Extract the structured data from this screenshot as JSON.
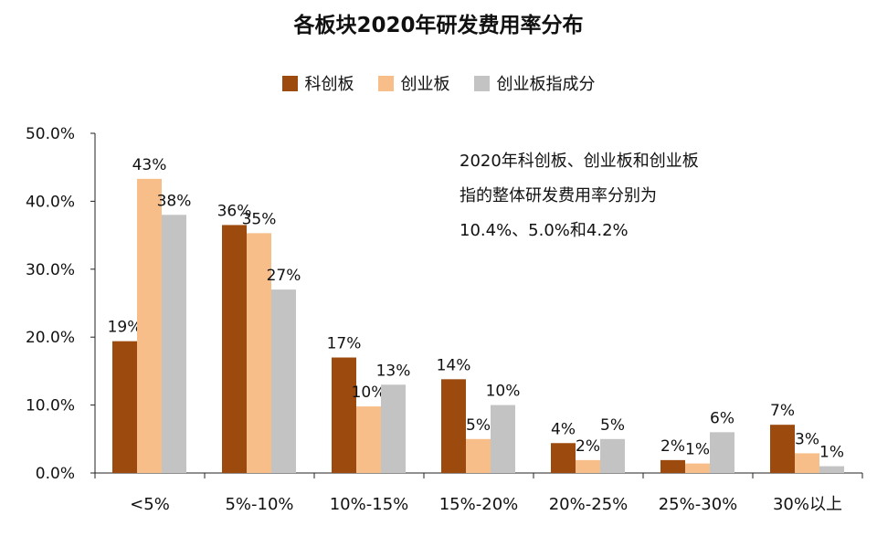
{
  "chart_data": {
    "type": "bar",
    "title": "各板块2020年研发费用率分布",
    "xlabel": "",
    "ylabel": "",
    "ylim": [
      0,
      50
    ],
    "y_ticks": [
      "0.0%",
      "10.0%",
      "20.0%",
      "30.0%",
      "40.0%",
      "50.0%"
    ],
    "categories": [
      "<5%",
      "5%-10%",
      "10%-15%",
      "15%-20%",
      "20%-25%",
      "25%-30%",
      "30%以上"
    ],
    "series": [
      {
        "name": "科创板",
        "color": "#9C4A0E",
        "values": [
          19.4,
          36.5,
          17.0,
          13.8,
          4.4,
          1.9,
          7.1
        ],
        "labels": [
          "19%",
          "36%",
          "17%",
          "14%",
          "4%",
          "2%",
          "7%"
        ]
      },
      {
        "name": "创业板",
        "color": "#F8BE8A",
        "values": [
          43.3,
          35.3,
          9.8,
          5.0,
          1.9,
          1.4,
          2.9
        ],
        "labels": [
          "43%",
          "35%",
          "10%",
          "5%",
          "2%",
          "1%",
          "3%"
        ]
      },
      {
        "name": "创业板指成分",
        "color": "#C3C3C3",
        "values": [
          38.0,
          27.0,
          13.0,
          10.0,
          5.0,
          6.0,
          1.0
        ],
        "labels": [
          "38%",
          "27%",
          "13%",
          "10%",
          "5%",
          "6%",
          "1%"
        ]
      }
    ],
    "legend_position": "top",
    "grid": false,
    "annotation": [
      "2020年科创板、创业板和创业板",
      "指的整体研发费用率分别为",
      "10.4%、5.0%和4.2%"
    ]
  }
}
